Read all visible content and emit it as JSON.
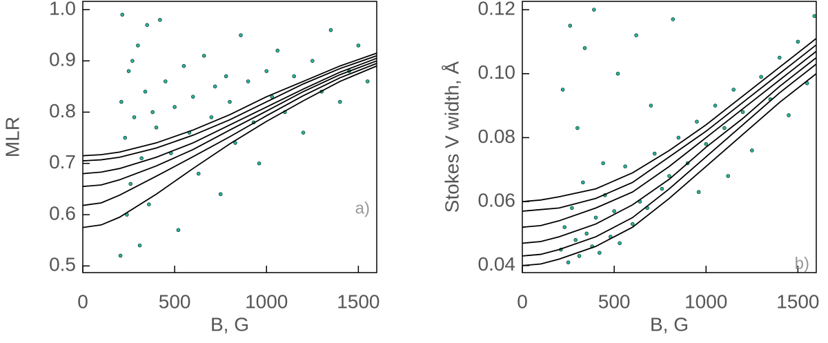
{
  "chart_data": [
    {
      "type": "scatter",
      "xlabel": "B, G",
      "ylabel": "MLR",
      "annotation": "a)",
      "xlim": [
        0,
        1600
      ],
      "ylim": [
        0.487,
        1.016
      ],
      "xticks": [
        0,
        500,
        1000,
        1500
      ],
      "yticks": [
        0.5,
        0.6,
        0.7,
        0.8,
        0.9,
        {
          "value": 1,
          "label": "1.0"
        }
      ],
      "points": {
        "color": "#2bb59a",
        "x": [
          210,
          230,
          250,
          260,
          280,
          300,
          320,
          340,
          360,
          380,
          400,
          420,
          450,
          480,
          500,
          520,
          550,
          580,
          600,
          630,
          660,
          700,
          720,
          750,
          780,
          800,
          830,
          860,
          900,
          930,
          960,
          1000,
          1030,
          1060,
          1100,
          1150,
          1200,
          1250,
          1300,
          1350,
          1400,
          1450,
          1500,
          1550,
          205,
          215,
          240,
          270,
          310,
          350
        ],
        "y": [
          0.82,
          0.75,
          0.88,
          0.66,
          0.79,
          0.93,
          0.71,
          0.84,
          0.62,
          0.8,
          0.77,
          0.98,
          0.86,
          0.72,
          0.81,
          0.57,
          0.89,
          0.76,
          0.83,
          0.68,
          0.91,
          0.79,
          0.85,
          0.64,
          0.87,
          0.82,
          0.74,
          0.95,
          0.86,
          0.78,
          0.7,
          0.88,
          0.83,
          0.92,
          0.8,
          0.87,
          0.76,
          0.9,
          0.84,
          0.96,
          0.82,
          0.88,
          0.93,
          0.86,
          0.52,
          0.99,
          0.6,
          0.9,
          0.54,
          0.97
        ]
      },
      "curve_x": [
        0,
        100,
        200,
        400,
        600,
        800,
        1000,
        1200,
        1400,
        1600
      ],
      "curves": [
        {
          "color": "#000000",
          "values": [
            0.715,
            0.717,
            0.722,
            0.74,
            0.765,
            0.795,
            0.83,
            0.86,
            0.89,
            0.915
          ]
        },
        {
          "color": "#000000",
          "values": [
            0.705,
            0.707,
            0.712,
            0.73,
            0.755,
            0.785,
            0.82,
            0.855,
            0.885,
            0.91
          ]
        },
        {
          "color": "#000000",
          "values": [
            0.68,
            0.683,
            0.69,
            0.712,
            0.74,
            0.775,
            0.81,
            0.845,
            0.878,
            0.905
          ]
        },
        {
          "color": "#000000",
          "values": [
            0.655,
            0.658,
            0.668,
            0.695,
            0.727,
            0.765,
            0.802,
            0.84,
            0.873,
            0.9
          ]
        },
        {
          "color": "#000000",
          "values": [
            0.618,
            0.623,
            0.638,
            0.675,
            0.713,
            0.752,
            0.793,
            0.832,
            0.867,
            0.895
          ]
        },
        {
          "color": "#000000",
          "values": [
            0.575,
            0.58,
            0.595,
            0.64,
            0.69,
            0.738,
            0.782,
            0.822,
            0.86,
            0.89
          ]
        }
      ]
    },
    {
      "type": "scatter",
      "xlabel": "B, G",
      "ylabel": "Stokes V width, Å",
      "annotation": "b)",
      "xlim": [
        0,
        1600
      ],
      "ylim": [
        0.0378,
        0.1226
      ],
      "xticks": [
        0,
        500,
        1000,
        1500
      ],
      "yticks": [
        0.04,
        0.06,
        0.08,
        {
          "value": 0.1,
          "label": "0.10"
        },
        0.12
      ],
      "points": {
        "color": "#2bb59a",
        "x": [
          210,
          230,
          250,
          270,
          290,
          310,
          330,
          350,
          380,
          400,
          420,
          450,
          480,
          500,
          530,
          560,
          600,
          640,
          680,
          720,
          760,
          800,
          850,
          900,
          950,
          1000,
          1050,
          1100,
          1150,
          1200,
          1250,
          1300,
          1350,
          1400,
          1450,
          1500,
          1550,
          1590,
          220,
          260,
          300,
          340,
          390,
          440,
          520,
          620,
          700,
          820,
          960,
          1120
        ],
        "y": [
          0.045,
          0.052,
          0.041,
          0.058,
          0.048,
          0.043,
          0.066,
          0.05,
          0.046,
          0.055,
          0.044,
          0.062,
          0.049,
          0.057,
          0.047,
          0.071,
          0.053,
          0.06,
          0.058,
          0.075,
          0.064,
          0.068,
          0.08,
          0.072,
          0.085,
          0.078,
          0.09,
          0.083,
          0.095,
          0.088,
          0.076,
          0.099,
          0.092,
          0.105,
          0.087,
          0.11,
          0.097,
          0.118,
          0.095,
          0.115,
          0.083,
          0.108,
          0.12,
          0.072,
          0.1,
          0.112,
          0.09,
          0.117,
          0.063,
          0.068
        ]
      },
      "curve_x": [
        0,
        100,
        200,
        400,
        600,
        800,
        1000,
        1200,
        1400,
        1600
      ],
      "curves": [
        {
          "color": "#000000",
          "values": [
            0.06,
            0.0605,
            0.0615,
            0.064,
            0.069,
            0.076,
            0.084,
            0.093,
            0.102,
            0.111
          ]
        },
        {
          "color": "#000000",
          "values": [
            0.057,
            0.0575,
            0.058,
            0.061,
            0.066,
            0.074,
            0.082,
            0.091,
            0.1,
            0.109
          ]
        },
        {
          "color": "#000000",
          "values": [
            0.052,
            0.0525,
            0.054,
            0.058,
            0.063,
            0.071,
            0.08,
            0.089,
            0.098,
            0.107
          ]
        },
        {
          "color": "#000000",
          "values": [
            0.047,
            0.0475,
            0.049,
            0.053,
            0.059,
            0.067,
            0.077,
            0.086,
            0.096,
            0.105
          ]
        },
        {
          "color": "#000000",
          "values": [
            0.043,
            0.0435,
            0.045,
            0.049,
            0.055,
            0.064,
            0.074,
            0.084,
            0.094,
            0.103
          ]
        },
        {
          "color": "#000000",
          "values": [
            0.04,
            0.0405,
            0.042,
            0.046,
            0.052,
            0.061,
            0.071,
            0.081,
            0.091,
            0.1
          ]
        }
      ]
    }
  ]
}
